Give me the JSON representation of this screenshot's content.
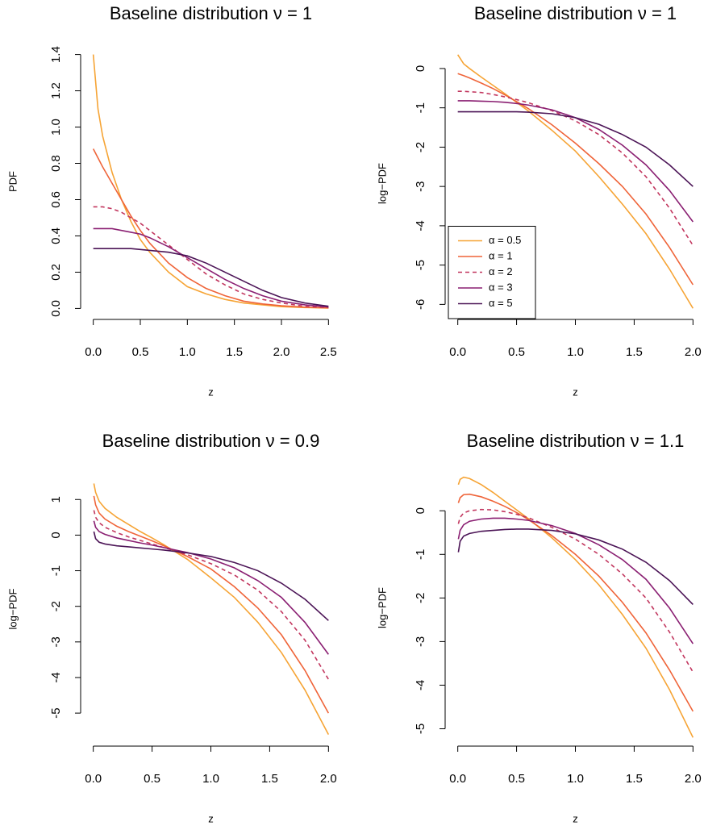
{
  "chart_data": [
    {
      "type": "line",
      "title": "Baseline distribution  ν = 1",
      "x_label": "z",
      "y_label": "PDF",
      "x": [
        0,
        0.05,
        0.1,
        0.2,
        0.3,
        0.4,
        0.5,
        0.6,
        0.8,
        1,
        1.2,
        1.4,
        1.6,
        1.8,
        2,
        2.25,
        2.5
      ],
      "xlim": [
        -0.1,
        2.6
      ],
      "xticks": [
        {
          "value": 0,
          "label": "0.0"
        },
        0.5,
        {
          "value": 1,
          "label": "1.0"
        },
        1.5,
        {
          "value": 2,
          "label": "2.0"
        },
        2.5
      ],
      "ylim": [
        -0.056,
        1.456
      ],
      "yticks": [
        {
          "value": 0,
          "label": "0.0"
        },
        0.2,
        0.4,
        0.6,
        0.8,
        {
          "value": 1,
          "label": "1.0"
        },
        1.2,
        1.4
      ],
      "series": [
        {
          "color": "#f6a435",
          "linestyle": "solid",
          "values": [
            1.4,
            1.1,
            0.95,
            0.75,
            0.6,
            0.48,
            0.38,
            0.31,
            0.2,
            0.12,
            0.08,
            0.05,
            0.03,
            0.02,
            0.01,
            0.005,
            0.002
          ]
        },
        {
          "color": "#ef6439",
          "linestyle": "solid",
          "values": [
            0.88,
            0.83,
            0.78,
            0.69,
            0.6,
            0.51,
            0.43,
            0.36,
            0.25,
            0.17,
            0.11,
            0.07,
            0.04,
            0.025,
            0.015,
            0.007,
            0.003
          ]
        },
        {
          "color": "#c2375f",
          "linestyle": "dashed",
          "values": [
            0.56,
            0.56,
            0.56,
            0.55,
            0.53,
            0.5,
            0.47,
            0.43,
            0.35,
            0.27,
            0.19,
            0.13,
            0.08,
            0.05,
            0.03,
            0.012,
            0.005
          ]
        },
        {
          "color": "#8a1f72",
          "linestyle": "solid",
          "values": [
            0.44,
            0.44,
            0.44,
            0.44,
            0.43,
            0.42,
            0.41,
            0.39,
            0.34,
            0.28,
            0.22,
            0.16,
            0.11,
            0.07,
            0.04,
            0.02,
            0.008
          ]
        },
        {
          "color": "#4b1456",
          "linestyle": "solid",
          "values": [
            0.33,
            0.33,
            0.33,
            0.33,
            0.33,
            0.33,
            0.325,
            0.32,
            0.31,
            0.29,
            0.25,
            0.2,
            0.15,
            0.1,
            0.06,
            0.03,
            0.012
          ]
        }
      ]
    },
    {
      "type": "line",
      "title": "Baseline distribution  ν = 1",
      "x_label": "z",
      "y_label": "log−PDF",
      "legend": "bottomleft",
      "x": [
        0,
        0.05,
        0.1,
        0.2,
        0.3,
        0.4,
        0.5,
        0.6,
        0.8,
        1,
        1.2,
        1.4,
        1.6,
        1.8,
        2
      ],
      "xlim": [
        -0.08,
        2.08
      ],
      "xticks": [
        {
          "value": 0,
          "label": "0.0"
        },
        0.5,
        {
          "value": 1,
          "label": "1.0"
        },
        1.5,
        {
          "value": 2,
          "label": "2.0"
        }
      ],
      "ylim": [
        -6.3,
        0.45
      ],
      "yticks": [
        0,
        -1,
        -2,
        -3,
        -4,
        -5,
        -6
      ],
      "series": [
        {
          "name": "α = 0.5",
          "color": "#f6a435",
          "linestyle": "solid",
          "values": [
            0.35,
            0.12,
            0.0,
            -0.22,
            -0.43,
            -0.64,
            -0.86,
            -1.08,
            -1.57,
            -2.1,
            -2.75,
            -3.45,
            -4.2,
            -5.1,
            -6.1
          ]
        },
        {
          "name": "α = 1",
          "color": "#ef6439",
          "linestyle": "solid",
          "values": [
            -0.13,
            -0.18,
            -0.24,
            -0.37,
            -0.51,
            -0.67,
            -0.84,
            -1.02,
            -1.43,
            -1.9,
            -2.42,
            -3.0,
            -3.7,
            -4.55,
            -5.5
          ]
        },
        {
          "name": "α = 2",
          "color": "#c2375f",
          "linestyle": "dashed",
          "values": [
            -0.58,
            -0.58,
            -0.59,
            -0.61,
            -0.66,
            -0.72,
            -0.79,
            -0.87,
            -1.07,
            -1.33,
            -1.68,
            -2.15,
            -2.75,
            -3.55,
            -4.5
          ]
        },
        {
          "name": "α = 3",
          "color": "#8a1f72",
          "linestyle": "solid",
          "values": [
            -0.82,
            -0.82,
            -0.82,
            -0.83,
            -0.84,
            -0.86,
            -0.89,
            -0.93,
            -1.05,
            -1.25,
            -1.55,
            -1.95,
            -2.45,
            -3.1,
            -3.9
          ]
        },
        {
          "name": "α = 5",
          "color": "#4b1456",
          "linestyle": "solid",
          "values": [
            -1.1,
            -1.1,
            -1.1,
            -1.1,
            -1.1,
            -1.1,
            -1.1,
            -1.11,
            -1.15,
            -1.25,
            -1.42,
            -1.68,
            -2.0,
            -2.45,
            -3.0
          ]
        }
      ]
    },
    {
      "type": "line",
      "title": "Baseline distribution  ν = 0.9",
      "x_label": "z",
      "y_label": "log−PDF",
      "x": [
        0.005,
        0.02,
        0.05,
        0.1,
        0.2,
        0.3,
        0.4,
        0.5,
        0.6,
        0.8,
        1,
        1.2,
        1.4,
        1.6,
        1.8,
        2
      ],
      "xlim": [
        -0.08,
        2.08
      ],
      "xticks": [
        {
          "value": 0,
          "label": "0.0"
        },
        0.5,
        {
          "value": 1,
          "label": "1.0"
        },
        1.5,
        {
          "value": 2,
          "label": "2.0"
        }
      ],
      "ylim": [
        -5.7,
        1.55
      ],
      "yticks": [
        1,
        0,
        -1,
        -2,
        -3,
        -4,
        -5
      ],
      "series": [
        {
          "color": "#f6a435",
          "linestyle": "solid",
          "values": [
            1.45,
            1.2,
            0.95,
            0.75,
            0.5,
            0.3,
            0.1,
            -0.08,
            -0.27,
            -0.68,
            -1.2,
            -1.75,
            -2.45,
            -3.3,
            -4.35,
            -5.6
          ]
        },
        {
          "color": "#ef6439",
          "linestyle": "solid",
          "values": [
            1.1,
            0.85,
            0.62,
            0.45,
            0.25,
            0.1,
            -0.03,
            -0.16,
            -0.3,
            -0.6,
            -0.95,
            -1.45,
            -2.05,
            -2.8,
            -3.8,
            -5.0
          ]
        },
        {
          "color": "#c2375f",
          "linestyle": "dashed",
          "values": [
            0.7,
            0.5,
            0.35,
            0.22,
            0.07,
            -0.05,
            -0.15,
            -0.25,
            -0.35,
            -0.55,
            -0.8,
            -1.12,
            -1.55,
            -2.15,
            -2.95,
            -4.05
          ]
        },
        {
          "color": "#8a1f72",
          "linestyle": "solid",
          "values": [
            0.4,
            0.22,
            0.1,
            0.02,
            -0.08,
            -0.15,
            -0.22,
            -0.28,
            -0.35,
            -0.49,
            -0.67,
            -0.92,
            -1.28,
            -1.75,
            -2.45,
            -3.35
          ]
        },
        {
          "color": "#4b1456",
          "linestyle": "solid",
          "values": [
            0.1,
            -0.1,
            -0.2,
            -0.25,
            -0.3,
            -0.33,
            -0.36,
            -0.39,
            -0.42,
            -0.5,
            -0.6,
            -0.77,
            -1.0,
            -1.35,
            -1.8,
            -2.4
          ]
        }
      ]
    },
    {
      "type": "line",
      "title": "Baseline distribution  ν = 1.1",
      "x_label": "z",
      "y_label": "log−PDF",
      "x": [
        0.005,
        0.02,
        0.05,
        0.1,
        0.2,
        0.3,
        0.4,
        0.5,
        0.6,
        0.8,
        1,
        1.2,
        1.4,
        1.6,
        1.8,
        2
      ],
      "xlim": [
        -0.08,
        2.08
      ],
      "xticks": [
        {
          "value": 0,
          "label": "0.0"
        },
        0.5,
        {
          "value": 1,
          "label": "1.0"
        },
        1.5,
        {
          "value": 2,
          "label": "2.0"
        }
      ],
      "ylim": [
        -5.25,
        0.8
      ],
      "yticks": [
        0,
        -1,
        -2,
        -3,
        -4,
        -5
      ],
      "series": [
        {
          "color": "#f6a435",
          "linestyle": "solid",
          "values": [
            0.6,
            0.72,
            0.77,
            0.74,
            0.6,
            0.42,
            0.22,
            0.02,
            -0.18,
            -0.62,
            -1.12,
            -1.7,
            -2.38,
            -3.15,
            -4.1,
            -5.2
          ]
        },
        {
          "color": "#ef6439",
          "linestyle": "solid",
          "values": [
            0.18,
            0.3,
            0.37,
            0.38,
            0.32,
            0.22,
            0.1,
            -0.04,
            -0.2,
            -0.57,
            -1.0,
            -1.5,
            -2.1,
            -2.8,
            -3.65,
            -4.6
          ]
        },
        {
          "color": "#c2375f",
          "linestyle": "dashed",
          "values": [
            -0.3,
            -0.15,
            -0.05,
            0.0,
            0.03,
            0.02,
            -0.02,
            -0.08,
            -0.16,
            -0.38,
            -0.65,
            -1.0,
            -1.45,
            -2.0,
            -2.78,
            -3.7
          ]
        },
        {
          "color": "#8a1f72",
          "linestyle": "solid",
          "values": [
            -0.65,
            -0.45,
            -0.32,
            -0.24,
            -0.19,
            -0.17,
            -0.17,
            -0.19,
            -0.22,
            -0.34,
            -0.52,
            -0.78,
            -1.12,
            -1.57,
            -2.23,
            -3.05
          ]
        },
        {
          "color": "#4b1456",
          "linestyle": "solid",
          "values": [
            -0.95,
            -0.7,
            -0.58,
            -0.52,
            -0.47,
            -0.45,
            -0.43,
            -0.42,
            -0.42,
            -0.45,
            -0.53,
            -0.67,
            -0.88,
            -1.18,
            -1.6,
            -2.15
          ]
        }
      ]
    }
  ]
}
